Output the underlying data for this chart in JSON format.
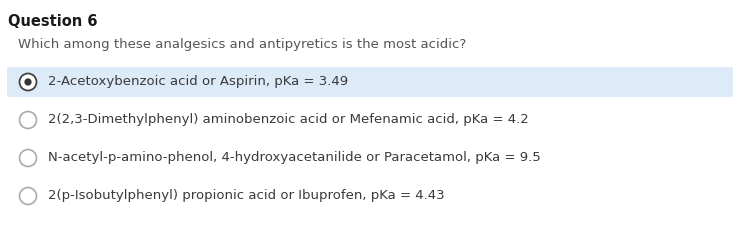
{
  "title": "Question 6",
  "question": "Which among these analgesics and antipyretics is the most acidic?",
  "options": [
    "2-Acetoxybenzoic acid or Aspirin, pKa = 3.49",
    "2(2,3-Dimethylphenyl) aminobenzoic acid or Mefenamic acid, pKa = 4.2",
    "N-acetyl-p-amino-phenol, 4-hydroxyacetanilide or Paracetamol, pKa = 9.5",
    "2(p-Isobutylphenyl) propionic acid or Ibuprofen, pKa = 4.43"
  ],
  "selected_index": 0,
  "background_color": "#ffffff",
  "selected_bg_color": "#ddeaf8",
  "text_color": "#3a3a3a",
  "title_color": "#1a1a1a",
  "question_color": "#555555",
  "circle_edge_color": "#aaaaaa",
  "selected_circle_edge_color": "#444444",
  "selected_dot_color": "#333333",
  "title_fontsize": 10.5,
  "question_fontsize": 9.5,
  "option_fontsize": 9.5
}
